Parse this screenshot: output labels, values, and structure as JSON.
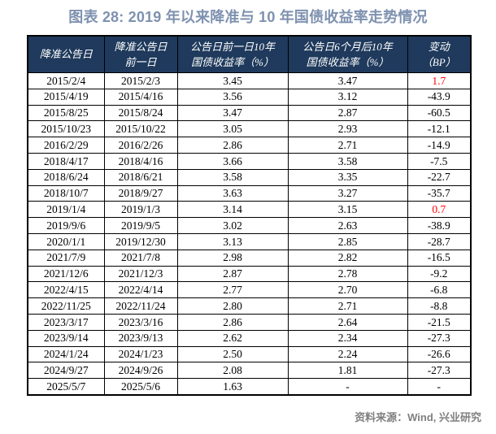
{
  "title": "图表 28: 2019 年以来降准与 10 年国债收益率走势情况",
  "table": {
    "headers": [
      "降准公告日",
      "降准公告日\n前一日",
      "公告日前一日10年\n国债收益率（%）",
      "公告日6个月后10年\n国债收益率（%）",
      "变动\n（BP）"
    ],
    "column_keys": [
      "announce_date",
      "prev_day",
      "yield_before",
      "yield_6m_after",
      "change_bp"
    ],
    "rows": [
      {
        "cells": [
          "2015/2/4",
          "2015/2/3",
          "3.45",
          "3.47",
          "1.7"
        ],
        "change_red": true
      },
      {
        "cells": [
          "2015/4/19",
          "2015/4/16",
          "3.56",
          "3.12",
          "-43.9"
        ],
        "change_red": false
      },
      {
        "cells": [
          "2015/8/25",
          "2015/8/24",
          "3.47",
          "2.87",
          "-60.5"
        ],
        "change_red": false
      },
      {
        "cells": [
          "2015/10/23",
          "2015/10/22",
          "3.05",
          "2.93",
          "-12.1"
        ],
        "change_red": false
      },
      {
        "cells": [
          "2016/2/29",
          "2016/2/26",
          "2.86",
          "2.71",
          "-14.9"
        ],
        "change_red": false
      },
      {
        "cells": [
          "2018/4/17",
          "2018/4/16",
          "3.66",
          "3.58",
          "-7.5"
        ],
        "change_red": false
      },
      {
        "cells": [
          "2018/6/24",
          "2018/6/21",
          "3.58",
          "3.35",
          "-22.7"
        ],
        "change_red": false
      },
      {
        "cells": [
          "2018/10/7",
          "2018/9/27",
          "3.63",
          "3.27",
          "-35.7"
        ],
        "change_red": false
      },
      {
        "cells": [
          "2019/1/4",
          "2019/1/3",
          "3.14",
          "3.15",
          "0.7"
        ],
        "change_red": true
      },
      {
        "cells": [
          "2019/9/6",
          "2019/9/5",
          "3.02",
          "2.63",
          "-38.9"
        ],
        "change_red": false
      },
      {
        "cells": [
          "2020/1/1",
          "2019/12/30",
          "3.13",
          "2.85",
          "-28.7"
        ],
        "change_red": false
      },
      {
        "cells": [
          "2021/7/9",
          "2021/7/8",
          "2.98",
          "2.82",
          "-16.5"
        ],
        "change_red": false
      },
      {
        "cells": [
          "2021/12/6",
          "2021/12/3",
          "2.87",
          "2.78",
          "-9.2"
        ],
        "change_red": false
      },
      {
        "cells": [
          "2022/4/15",
          "2022/4/14",
          "2.77",
          "2.70",
          "-6.8"
        ],
        "change_red": false
      },
      {
        "cells": [
          "2022/11/25",
          "2022/11/24",
          "2.80",
          "2.71",
          "-8.8"
        ],
        "change_red": false
      },
      {
        "cells": [
          "2023/3/17",
          "2023/3/16",
          "2.86",
          "2.64",
          "-21.5"
        ],
        "change_red": false
      },
      {
        "cells": [
          "2023/9/14",
          "2023/9/13",
          "2.62",
          "2.34",
          "-27.3"
        ],
        "change_red": false
      },
      {
        "cells": [
          "2024/1/24",
          "2024/1/23",
          "2.50",
          "2.24",
          "-26.6"
        ],
        "change_red": false
      },
      {
        "cells": [
          "2024/9/27",
          "2024/9/26",
          "2.08",
          "1.81",
          "-27.3"
        ],
        "change_red": false
      },
      {
        "cells": [
          "2025/5/7",
          "2025/5/6",
          "1.63",
          "-",
          "-"
        ],
        "change_red": false
      }
    ]
  },
  "footer": {
    "source": "资料来源：Wind, 兴业研究"
  },
  "colors": {
    "title_text": "#7E91AF",
    "header_bg": "#1F3A5C",
    "header_text": "#FFFFFF",
    "body_text": "#000000",
    "highlight_red": "#FF0000",
    "source_text": "#808080",
    "border": "#000000"
  }
}
